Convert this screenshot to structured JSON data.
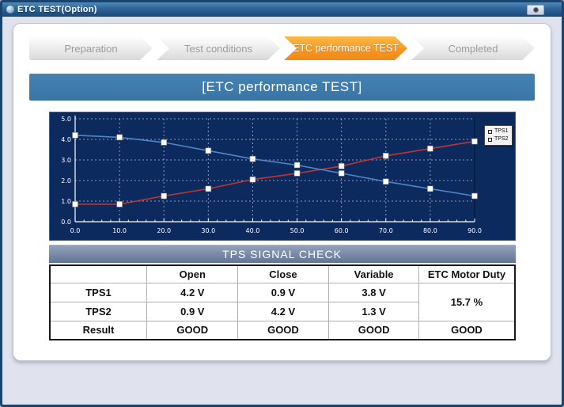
{
  "window": {
    "title": "ETC TEST(Option)"
  },
  "steps": {
    "items": [
      {
        "label": "Preparation",
        "active": false
      },
      {
        "label": "Test conditions",
        "active": false
      },
      {
        "label": "ETC performance TEST",
        "active": true
      },
      {
        "label": "Completed",
        "active": false
      }
    ]
  },
  "header": {
    "title": "[ETC performance TEST]"
  },
  "chart_data": {
    "type": "line",
    "x": [
      0,
      10,
      20,
      30,
      40,
      50,
      60,
      70,
      80,
      90
    ],
    "series": [
      {
        "name": "TPS1",
        "color": "#bf3434",
        "values": [
          0.85,
          0.85,
          1.25,
          1.6,
          2.05,
          2.35,
          2.7,
          3.2,
          3.55,
          3.9
        ]
      },
      {
        "name": "TPS2",
        "color": "#4a86c8",
        "values": [
          4.2,
          4.1,
          3.85,
          3.45,
          3.05,
          2.75,
          2.35,
          1.95,
          1.6,
          1.25
        ]
      }
    ],
    "xlim": [
      0,
      90
    ],
    "ylim": [
      0,
      5
    ],
    "xticks": [
      0,
      10,
      20,
      30,
      40,
      50,
      60,
      70,
      80,
      90
    ],
    "yticks": [
      0,
      1,
      2,
      3,
      4,
      5
    ],
    "grid": true,
    "legend_position": "top-right",
    "background": "#0d2a5f",
    "marker": "square"
  },
  "signal_check": {
    "title": "TPS SIGNAL CHECK",
    "columns": [
      "",
      "Open",
      "Close",
      "Variable",
      "ETC Motor Duty"
    ],
    "rows": [
      {
        "label": "TPS1",
        "open": "4.2 V",
        "close": "0.9 V",
        "variable": "3.8 V"
      },
      {
        "label": "TPS2",
        "open": "0.9 V",
        "close": "4.2 V",
        "variable": "1.3 V"
      }
    ],
    "motor_duty": "15.7 %",
    "result_row": {
      "label": "Result",
      "open": "GOOD",
      "close": "GOOD",
      "variable": "GOOD",
      "motor_duty": "GOOD"
    }
  },
  "colors": {
    "active_step_orange": "#f79420",
    "header_blue": "#3d7aac",
    "chart_background": "#0d2a5f",
    "tps1_red": "#ee1111",
    "tps2_blue": "#2222ee",
    "good_blue": "#1414f0"
  }
}
